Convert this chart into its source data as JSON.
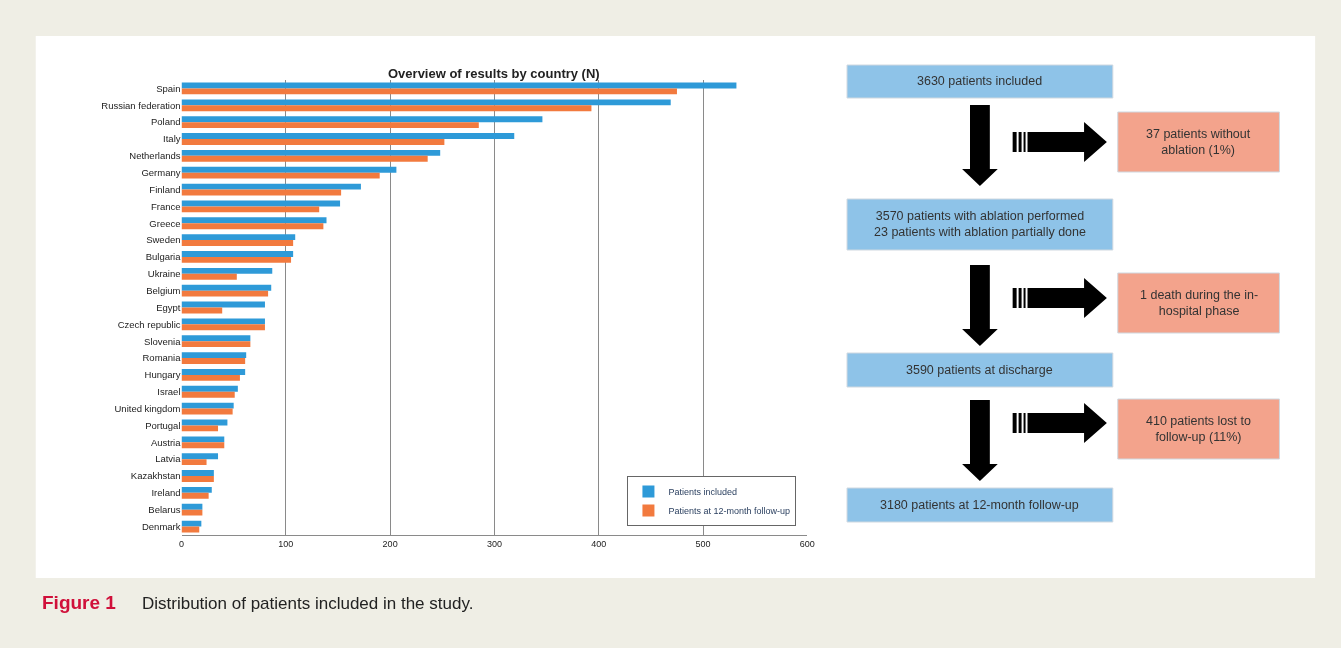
{
  "chart_data": [
    {
      "type": "bar",
      "orientation": "horizontal",
      "title": "Overview of results by country (N)",
      "categories": [
        "Spain",
        "Russian federation",
        "Poland",
        "Italy",
        "Netherlands",
        "Germany",
        "Finland",
        "France",
        "Greece",
        "Sweden",
        "Bulgaria",
        "Ukraine",
        "Belgium",
        "Egypt",
        "Czech republic",
        "Slovenia",
        "Romania",
        "Hungary",
        "Israel",
        "United kingdom",
        "Portugal",
        "Austria",
        "Latvia",
        "Kazakhstan",
        "Ireland",
        "Belarus",
        "Denmark"
      ],
      "series": [
        {
          "name": "Patients included",
          "color": "#2e9ad8",
          "values": [
            532,
            469,
            346,
            319,
            248,
            206,
            172,
            152,
            139,
            109,
            107,
            87,
            86,
            80,
            80,
            66,
            62,
            61,
            54,
            50,
            44,
            41,
            35,
            31,
            29,
            20,
            19
          ]
        },
        {
          "name": "Patients at 12-month follow-up",
          "color": "#f27a3e",
          "values": [
            475,
            393,
            285,
            252,
            236,
            190,
            153,
            132,
            136,
            107,
            105,
            53,
            83,
            39,
            80,
            66,
            61,
            56,
            51,
            49,
            35,
            41,
            24,
            31,
            26,
            20,
            17
          ]
        }
      ],
      "xlim": [
        0,
        600
      ],
      "xticks": [
        0,
        100,
        200,
        300,
        400,
        500,
        600
      ],
      "grid": "x",
      "legend": "bottom right",
      "annotations": [
        "Figure 1",
        "Distribution of patients included in the study."
      ]
    },
    {
      "type": "other",
      "annotations": [
        "3630 patients included",
        "37 patients without\nablation (1%)",
        "3570 patients with ablation performed\n23 patients with ablation partially done",
        "1 death during the in-\nhospital phase",
        "3590 patients at discharge",
        "410 patients lost to\nfollow-up (11%)",
        "3180 patients at 12-month follow-up"
      ]
    }
  ]
}
